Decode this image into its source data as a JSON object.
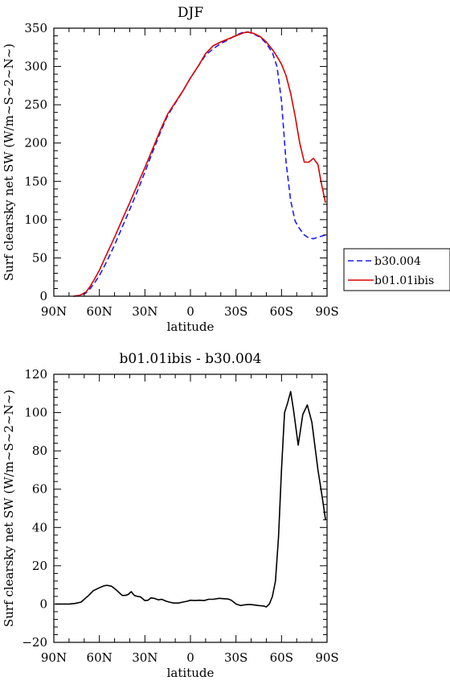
{
  "chart_data": [
    {
      "type": "line",
      "title": "DJF",
      "xlabel": "latitude",
      "ylabel": "Surf clearsky net SW (W/m~S~2~N~)",
      "xlim": [
        -90,
        90
      ],
      "ylim": [
        0,
        350
      ],
      "x_ticks": [
        "90N",
        "60N",
        "30N",
        "0",
        "30S",
        "60S",
        "90S"
      ],
      "x_tick_values": [
        -90,
        -60,
        -30,
        0,
        30,
        60,
        90
      ],
      "y_ticks": [
        "0",
        "50",
        "100",
        "150",
        "200",
        "250",
        "300",
        "350"
      ],
      "y_tick_values": [
        0,
        50,
        100,
        150,
        200,
        250,
        300,
        350
      ],
      "legend_position": "right",
      "series": [
        {
          "name": "b30.004",
          "color": "#1a1aff",
          "dash": "dashed",
          "x": [
            -77,
            -73,
            -69,
            -66,
            -63,
            -60,
            -57,
            -54,
            -50,
            -45,
            -40,
            -35,
            -30,
            -25,
            -20,
            -15,
            -10,
            -5,
            0,
            5,
            10,
            15,
            20,
            25,
            30,
            35,
            38,
            42,
            46,
            50,
            54,
            57,
            60,
            63,
            66,
            69,
            72,
            75,
            78,
            81,
            84,
            89
          ],
          "values": [
            0,
            1,
            4,
            10,
            18,
            27,
            38,
            50,
            67,
            90,
            113,
            137,
            162,
            188,
            213,
            236,
            252,
            268,
            285,
            300,
            315,
            323,
            330,
            335,
            341,
            345,
            345,
            342,
            338,
            330,
            318,
            300,
            255,
            175,
            125,
            98,
            88,
            80,
            76,
            75,
            77,
            80
          ]
        },
        {
          "name": "b01.01ibis",
          "color": "#dd0000",
          "dash": "solid",
          "x": [
            -77,
            -73,
            -69,
            -66,
            -63,
            -60,
            -57,
            -54,
            -50,
            -45,
            -40,
            -35,
            -30,
            -25,
            -20,
            -15,
            -10,
            -5,
            0,
            5,
            10,
            15,
            20,
            25,
            30,
            35,
            38,
            42,
            46,
            50,
            54,
            57,
            60,
            63,
            66,
            69,
            72,
            75,
            78,
            81,
            84,
            86,
            89
          ],
          "values": [
            0,
            1,
            5,
            13,
            23,
            34,
            47,
            60,
            77,
            100,
            122,
            145,
            168,
            192,
            216,
            238,
            253,
            268,
            285,
            300,
            317,
            327,
            332,
            336,
            340,
            344,
            345,
            343,
            339,
            332,
            322,
            313,
            303,
            288,
            265,
            235,
            200,
            175,
            175,
            180,
            172,
            150,
            122
          ]
        }
      ]
    },
    {
      "type": "line",
      "title": "b01.01ibis - b30.004",
      "xlabel": "latitude",
      "ylabel": "Surf clearsky net SW (W/m~S~2~N~)",
      "xlim": [
        -90,
        90
      ],
      "ylim": [
        -20,
        120
      ],
      "x_ticks": [
        "90N",
        "60N",
        "30N",
        "0",
        "30S",
        "60S",
        "90S"
      ],
      "x_tick_values": [
        -90,
        -60,
        -30,
        0,
        30,
        60,
        90
      ],
      "y_ticks": [
        "−20",
        "0",
        "20",
        "40",
        "60",
        "80",
        "100",
        "120"
      ],
      "y_tick_values": [
        -20,
        0,
        20,
        40,
        60,
        80,
        100,
        120
      ],
      "series": [
        {
          "color": "#000000",
          "x": [
            -89,
            -80,
            -76,
            -72,
            -70,
            -67,
            -64,
            -60,
            -57,
            -55,
            -52,
            -49,
            -47,
            -45,
            -43,
            -41,
            -39,
            -37,
            -35,
            -33,
            -30,
            -28,
            -26,
            -24,
            -21,
            -19,
            -16,
            -14,
            -11,
            -8,
            -5,
            -2,
            0,
            3,
            6,
            9,
            12,
            15,
            19,
            22,
            25,
            27,
            30,
            33,
            35,
            38,
            40,
            42,
            45,
            48,
            50,
            52,
            54,
            56,
            58,
            60,
            62,
            64,
            66,
            68,
            71,
            74,
            77,
            80,
            84,
            87,
            89
          ],
          "values": [
            0,
            0,
            0.3,
            1,
            2.5,
            4.5,
            7,
            8.5,
            9.5,
            9.8,
            9.3,
            7.5,
            6,
            4.5,
            4.5,
            5,
            6.5,
            4.5,
            4,
            3.8,
            1.8,
            2,
            3.2,
            3,
            2.2,
            2.5,
            1.5,
            1,
            0.5,
            0.5,
            1,
            1.5,
            2,
            1.8,
            2,
            1.8,
            2.5,
            2.5,
            3,
            2.8,
            2.6,
            2,
            0,
            -0.8,
            -0.5,
            -0.3,
            -0.3,
            -0.5,
            -0.8,
            -1,
            -1.5,
            0,
            4,
            12,
            35,
            70,
            100,
            105,
            111,
            101,
            83,
            99,
            104,
            95,
            70,
            55,
            44
          ]
        }
      ]
    }
  ]
}
